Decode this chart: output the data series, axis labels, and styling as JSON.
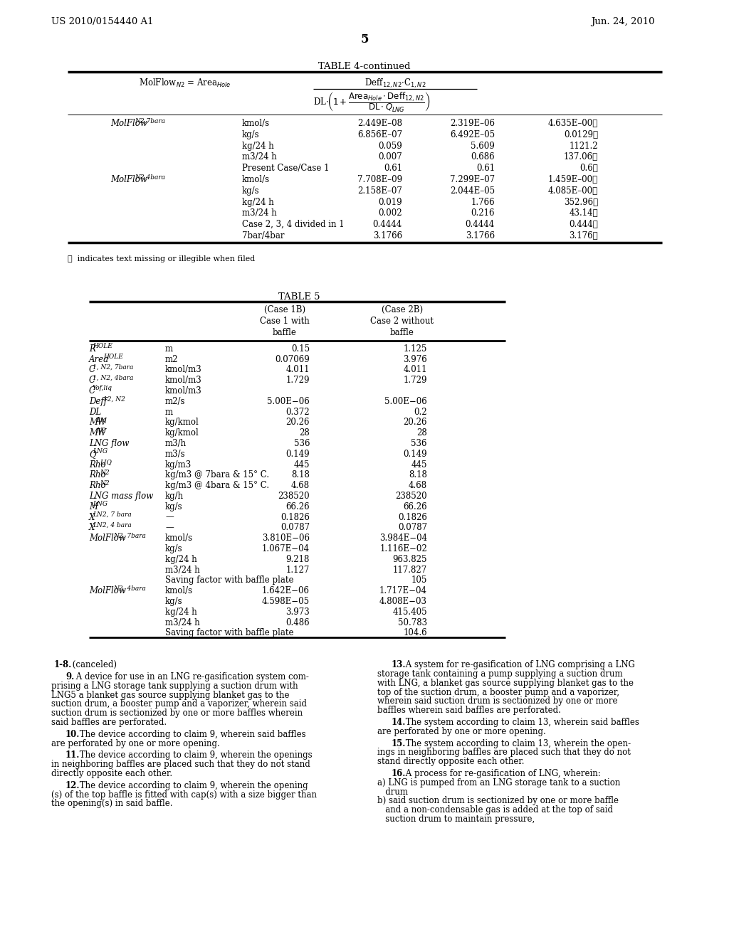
{
  "patent_number": "US 2010/0154440 A1",
  "date": "Jun. 24, 2010",
  "page_number": "5",
  "table4_title": "TABLE 4-continued",
  "table5_title": "TABLE 5",
  "footnote": "Ⓟ  indicates text missing or illegible when filed",
  "table4_rows": [
    [
      "MolFlow",
      "N2,7bara",
      "kmol/s",
      "2.449E–08",
      "2.319E–06",
      "4.635E–00Ⓟ"
    ],
    [
      "",
      "",
      "kg/s",
      "6.856E–07",
      "6.492E–05",
      "0.0129Ⓟ"
    ],
    [
      "",
      "",
      "kg/24 h",
      "0.059",
      "5.609",
      "1121.2"
    ],
    [
      "",
      "",
      "m3/24 h",
      "0.007",
      "0.686",
      "137.06Ⓟ"
    ],
    [
      "",
      "",
      "Present Case/Case 1",
      "0.61",
      "0.61",
      "0.6Ⓟ"
    ],
    [
      "MolFlow",
      "N2,4bara",
      "kmol/s",
      "7.708E–09",
      "7.299E–07",
      "1.459E–00Ⓟ"
    ],
    [
      "",
      "",
      "kg/s",
      "2.158E–07",
      "2.044E–05",
      "4.085E–00Ⓟ"
    ],
    [
      "",
      "",
      "kg/24 h",
      "0.019",
      "1.766",
      "352.96Ⓟ"
    ],
    [
      "",
      "",
      "m3/24 h",
      "0.002",
      "0.216",
      "43.14Ⓟ"
    ],
    [
      "",
      "",
      "Case 2, 3, 4 divided in 1",
      "0.4444",
      "0.4444",
      "0.444Ⓟ"
    ],
    [
      "",
      "",
      "7bar/4bar",
      "3.1766",
      "3.1766",
      "3.176Ⓟ"
    ]
  ],
  "table5_rows": [
    [
      "R",
      "HOLE",
      "m",
      "0.15",
      "1.125"
    ],
    [
      "Area",
      "HOLE",
      "m2",
      "0.07069",
      "3.976"
    ],
    [
      "C",
      "1, N2, 7bara",
      "kmol/m3",
      "4.011",
      "4.011"
    ],
    [
      "C",
      "1, N2, 4bara",
      "kmol/m3",
      "1.729",
      "1.729"
    ],
    [
      "C",
      "Yof,liq",
      "kmol/m3",
      "",
      ""
    ],
    [
      "Deff",
      "12, N2",
      "m2/s",
      "5.00E−06",
      "5.00E−06"
    ],
    [
      "DL",
      "",
      "m",
      "0.372",
      "0.2"
    ],
    [
      "MW",
      "Liq",
      "kg/kmol",
      "20.26",
      "20.26"
    ],
    [
      "MW",
      "N2",
      "kg/kmol",
      "28",
      "28"
    ],
    [
      "LNG flow",
      "",
      "m3/h",
      "536",
      "536"
    ],
    [
      "Q",
      "LNG",
      "m3/s",
      "0.149",
      "0.149"
    ],
    [
      "Rho",
      "LIQ",
      "kg/m3",
      "445",
      "445"
    ],
    [
      "Rho",
      "N2",
      "kg/m3 @ 7bara & 15° C.",
      "8.18",
      "8.18"
    ],
    [
      "Rho",
      "N2",
      "kg/m3 @ 4bara & 15° C.",
      "4.68",
      "4.68"
    ],
    [
      "LNG mass flow",
      "",
      "kg/h",
      "238520",
      "238520"
    ],
    [
      "M",
      "LNG",
      "kg/s",
      "66.26",
      "66.26"
    ],
    [
      "X",
      "LN2, 7 bara",
      "—",
      "0.1826",
      "0.1826"
    ],
    [
      "X",
      "LN2, 4 bara",
      "—",
      "0.0787",
      "0.0787"
    ],
    [
      "MolFlow",
      "N2, 7bara",
      "kmol/s",
      "3.810E−06",
      "3.984E−04"
    ],
    [
      "",
      "",
      "kg/s",
      "1.067E−04",
      "1.116E−02"
    ],
    [
      "",
      "",
      "kg/24 h",
      "9.218",
      "963.825"
    ],
    [
      "",
      "",
      "m3/24 h",
      "1.127",
      "117.827"
    ],
    [
      "",
      "",
      "Saving factor with baffle plate",
      "",
      "105"
    ],
    [
      "MolFlow",
      "N2, 4bara",
      "kmol/s",
      "1.642E−06",
      "1.717E−04"
    ],
    [
      "",
      "",
      "kg/s",
      "4.598E−05",
      "4.808E−03"
    ],
    [
      "",
      "",
      "kg/24 h",
      "3.973",
      "415.405"
    ],
    [
      "",
      "",
      "m3/24 h",
      "0.486",
      "50.783"
    ],
    [
      "",
      "",
      "Saving factor with baffle plate",
      "",
      "104.6"
    ]
  ],
  "claims_left": [
    {
      "bold_part": "1-8.",
      "rest": " (canceled)",
      "indent": false
    },
    {
      "bold_part": "9.",
      "rest": " A device for use in an LNG re-gasification system com-\nprising a LNG storage tank supplying a suction drum with\nLNG5 a blanket gas source supplying blanket gas to the\nsuction drum, a booster pump and a vaporizer, wherein said\nsuction drum is sectionized by one or more baffles wherein\nsaid baffles are perforated.",
      "indent": true
    },
    {
      "bold_part": "10.",
      "rest": " The device according to claim 9, wherein said baffles\nare perforated by one or more opening.",
      "indent": true
    },
    {
      "bold_part": "11.",
      "rest": " The device according to claim 9, wherein the openings\nin neighboring baffles are placed such that they do not stand\ndirectly opposite each other.",
      "indent": true
    },
    {
      "bold_part": "12.",
      "rest": " The device according to claim 9, wherein the opening\n(s) of the top baffle is fitted with cap(s) with a size bigger than\nthe opening(s) in said baffle.",
      "indent": true
    }
  ],
  "claims_right": [
    {
      "bold_part": "13.",
      "rest": " A system for re-gasification of LNG comprising a LNG\nstorage tank containing a pump supplying a suction drum\nwith LNG, a blanket gas source supplying blanket gas to the\ntop of the suction drum, a booster pump and a vaporizer,\nwherein said suction drum is sectionized by one or more\nbaffles wherein said baffles are perforated.",
      "indent": true
    },
    {
      "bold_part": "14.",
      "rest": " The system according to claim 13, wherein said baffles\nare perforated by one or more opening.",
      "indent": true
    },
    {
      "bold_part": "15.",
      "rest": " The system according to claim 13, wherein the open-\nings in neighboring baffles are placed such that they do not\nstand directly opposite each other.",
      "indent": true
    },
    {
      "bold_part": "16.",
      "rest": " A process for re-gasification of LNG, wherein:\na) LNG is pumped from an LNG storage tank to a suction\n   drum\nb) said suction drum is sectionized by one or more baffle\n   and a non-condensable gas is added at the top of said\n   suction drum to maintain pressure,",
      "indent": true
    }
  ]
}
